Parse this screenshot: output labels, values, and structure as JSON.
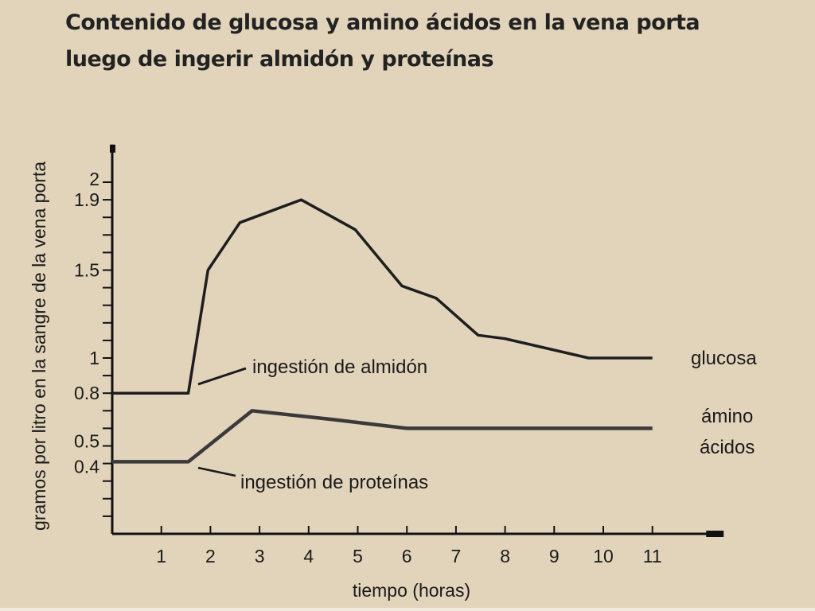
{
  "chart_data": {
    "type": "line",
    "title_lines": [
      "Contenido de glucosa y amino ácidos en la vena porta",
      "luego de ingerir almidón y proteínas"
    ],
    "xlabel": "tiempo (horas)",
    "ylabel": "gramos por litro en la sangre de la vena porta",
    "xlim": [
      0,
      12.5
    ],
    "ylim": [
      0,
      2.2
    ],
    "x_ticks": [
      1,
      2,
      3,
      4,
      5,
      6,
      7,
      8,
      9,
      10,
      11
    ],
    "y_tick_marks": [
      0.1,
      0.2,
      0.3,
      0.4,
      0.5,
      0.6,
      0.7,
      0.8,
      0.9,
      1,
      1.1,
      1.2,
      1.3,
      1.4,
      1.5,
      1.6,
      1.7,
      1.8,
      1.9,
      2
    ],
    "y_tick_labels": [
      {
        "value": 2,
        "label": "2"
      },
      {
        "value": 1.9,
        "label": "1.9"
      },
      {
        "value": 1.5,
        "label": "1.5"
      },
      {
        "value": 1,
        "label": "1"
      },
      {
        "value": 0.8,
        "label": "0.8"
      },
      {
        "value": 0.5,
        "label": "0.5"
      },
      {
        "value": 0.4,
        "label": "0.4"
      }
    ],
    "series": [
      {
        "name": "glucosa",
        "color": "#1e1e1e",
        "points": [
          [
            0,
            0.8
          ],
          [
            1.55,
            0.8
          ],
          [
            1.95,
            1.5
          ],
          [
            2.6,
            1.77
          ],
          [
            3.85,
            1.9
          ],
          [
            4.95,
            1.73
          ],
          [
            5.9,
            1.41
          ],
          [
            6.6,
            1.34
          ],
          [
            7.45,
            1.13
          ],
          [
            8.0,
            1.11
          ],
          [
            9.7,
            1.0
          ],
          [
            11.0,
            1.0
          ]
        ]
      },
      {
        "name": "ámino ácidos",
        "color": "#3a3a3a",
        "points": [
          [
            0,
            0.41
          ],
          [
            1.55,
            0.41
          ],
          [
            2.85,
            0.7
          ],
          [
            4.5,
            0.65
          ],
          [
            6.0,
            0.6
          ],
          [
            11.0,
            0.6
          ]
        ]
      }
    ],
    "series_labels": {
      "glucosa": "glucosa",
      "amino_line1": "ámino",
      "amino_line2": "ácidos"
    },
    "annotations": {
      "almidon": "ingestión de almidón",
      "proteinas": "ingestión de proteínas"
    }
  }
}
